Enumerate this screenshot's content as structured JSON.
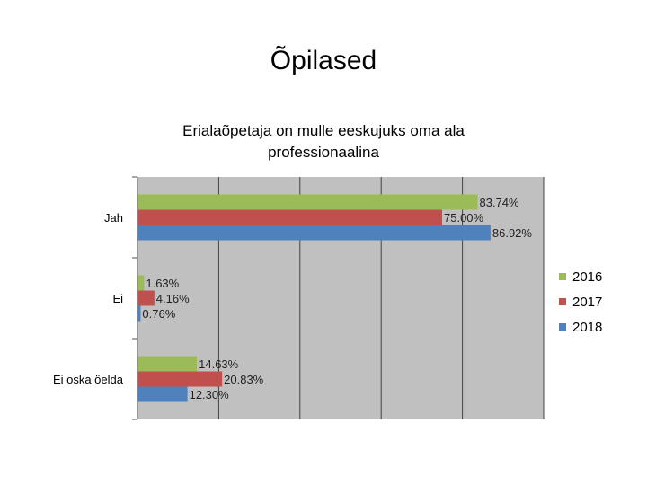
{
  "slide": {
    "title": "Õpilased"
  },
  "chart_data": {
    "type": "bar",
    "orientation": "horizontal",
    "title": "Erialaõpetaja on mulle eeskujuks oma ala professionaalina",
    "categories": [
      "Jah",
      "Ei",
      "Ei oska öelda"
    ],
    "series": [
      {
        "name": "2016",
        "color": "#9bbb59",
        "values": [
          83.74,
          1.63,
          14.63
        ],
        "labels": [
          "83.74%",
          "1.63%",
          "14.63%"
        ]
      },
      {
        "name": "2017",
        "color": "#c0504d",
        "values": [
          75.0,
          4.16,
          20.83
        ],
        "labels": [
          "75.00%",
          "4.16%",
          "20.83%"
        ]
      },
      {
        "name": "2018",
        "color": "#4f81bd",
        "values": [
          86.92,
          0.76,
          12.3
        ],
        "labels": [
          "86.92%",
          "0.76%",
          "12.30%"
        ]
      }
    ],
    "xlim": [
      0,
      100
    ],
    "grid": true,
    "plot_background": "#c0c0c0",
    "legend_position": "right"
  }
}
